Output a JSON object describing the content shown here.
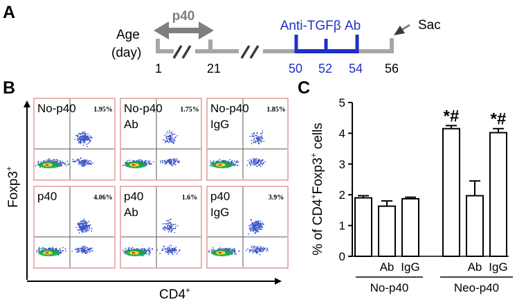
{
  "panel_labels": {
    "a": "A",
    "b": "B",
    "c": "C"
  },
  "timeline": {
    "age_label_line1": "Age",
    "age_label_line2": "(day)",
    "p40_label": "p40",
    "antibody_label": "Anti-TGFβ Ab",
    "sac_label": "Sac",
    "days": [
      "1",
      "21",
      "50",
      "52",
      "54",
      "56"
    ],
    "colors": {
      "timeline": "#a6a6a6",
      "antibody": "#1f30c8",
      "arrow": "#7f7f7f"
    }
  },
  "flow": {
    "y_axis_label": "Foxp3",
    "y_axis_sup": "+",
    "x_axis_label": "CD4",
    "x_axis_sup": "+",
    "plots": [
      {
        "line1": "No-p40",
        "line2": "",
        "percent": "1.95%"
      },
      {
        "line1": "No-p40",
        "line2": "Ab",
        "percent": "1.75%"
      },
      {
        "line1": "No-p40",
        "line2": "IgG",
        "percent": "1.85%"
      },
      {
        "line1": "p40",
        "line2": "",
        "percent": "4.06%"
      },
      {
        "line1": "p40",
        "line2": "Ab",
        "percent": "1.6%"
      },
      {
        "line1": "p40",
        "line2": "IgG",
        "percent": "3.9%"
      }
    ],
    "colors": {
      "border": "#d98a8a",
      "dots": "#3a55c8",
      "core": "#16a84a",
      "hot": "#f2e21a"
    }
  },
  "chart_data": {
    "type": "bar",
    "ylabel": "% of CD4+Foxp3+ cells",
    "ylim": [
      0,
      5
    ],
    "yticks": [
      "0",
      "1",
      "2",
      "3",
      "4",
      "5"
    ],
    "categories": [
      "",
      "Ab",
      "IgG",
      "",
      "Ab",
      "IgG"
    ],
    "values": [
      1.9,
      1.63,
      1.87,
      4.15,
      1.97,
      4.02
    ],
    "errors": [
      0.07,
      0.17,
      0.05,
      0.1,
      0.48,
      0.13
    ],
    "groups": [
      {
        "name": "No-p40",
        "indices": [
          0,
          1,
          2
        ]
      },
      {
        "name": "Neo-p40",
        "indices": [
          3,
          4,
          5
        ]
      }
    ],
    "annotations": [
      {
        "index": 3,
        "text": "*#"
      },
      {
        "index": 5,
        "text": "*#"
      }
    ],
    "grid": false,
    "colors": {
      "bar_fill": "#ffffff",
      "bar_edge": "#000000"
    }
  }
}
